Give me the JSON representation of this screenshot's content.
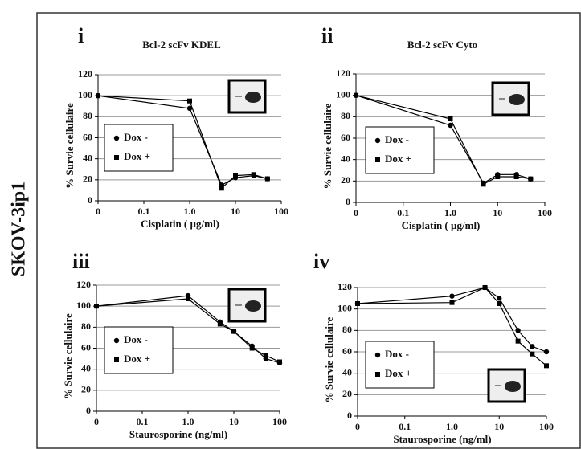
{
  "side_label": "SKOV-3ip1",
  "chart_data": [
    {
      "type": "line",
      "panel": "i",
      "title": "Bcl-2 scFv KDEL",
      "xlabel": "Cisplatin ( µg/ml)",
      "ylabel": "% Survie cellulaire",
      "xscale": "log",
      "xlim": [
        0.01,
        100
      ],
      "xticks": [
        {
          "value": 0.01,
          "label": "0"
        },
        0.1,
        {
          "value": 1,
          "label": "1.0"
        },
        10,
        100
      ],
      "ylim": [
        0,
        120
      ],
      "yticks": [
        0,
        20,
        40,
        60,
        80,
        100,
        120
      ],
      "grid": true,
      "x": [
        0.01,
        1,
        5,
        10,
        25,
        50
      ],
      "series": [
        {
          "name": "Dox -",
          "color": "#000000",
          "marker": "circle",
          "values": [
            100,
            88,
            15,
            22,
            24,
            21
          ]
        },
        {
          "name": "Dox +",
          "color": "#000000",
          "marker": "square",
          "values": [
            100,
            95,
            12,
            24,
            25,
            21
          ]
        }
      ]
    },
    {
      "type": "line",
      "panel": "ii",
      "title": "Bcl-2 scFv Cyto",
      "xlabel": "Cisplatin ( µg/ml)",
      "ylabel": "% Survie cellulaire",
      "xscale": "log",
      "xlim": [
        0.01,
        100
      ],
      "xticks": [
        {
          "value": 0.01,
          "label": "0"
        },
        0.1,
        {
          "value": 1,
          "label": "1.0"
        },
        10,
        100
      ],
      "ylim": [
        0,
        120
      ],
      "yticks": [
        0,
        20,
        40,
        60,
        80,
        100,
        120
      ],
      "grid": true,
      "x": [
        0.01,
        1,
        5,
        10,
        25,
        50
      ],
      "series": [
        {
          "name": "Dox -",
          "color": "#000000",
          "marker": "circle",
          "values": [
            100,
            72,
            18,
            26,
            26,
            22
          ]
        },
        {
          "name": "Dox +",
          "color": "#000000",
          "marker": "square",
          "values": [
            100,
            78,
            17,
            24,
            24,
            22
          ]
        }
      ]
    },
    {
      "type": "line",
      "panel": "iii",
      "xlabel": "Staurosporine (ng/ml)",
      "ylabel": "% Survie cellulaire",
      "xscale": "log",
      "xlim": [
        0.01,
        100
      ],
      "xticks": [
        {
          "value": 0.01,
          "label": "0"
        },
        0.1,
        {
          "value": 1,
          "label": "1.0"
        },
        10,
        100
      ],
      "ylim": [
        0,
        120
      ],
      "yticks": [
        0,
        20,
        40,
        60,
        80,
        100,
        120
      ],
      "grid": true,
      "x": [
        0.01,
        1,
        5,
        10,
        25,
        50,
        100
      ],
      "series": [
        {
          "name": "Dox -",
          "color": "#000000",
          "marker": "circle",
          "values": [
            100,
            110,
            85,
            76,
            62,
            50,
            46
          ]
        },
        {
          "name": "Dox +",
          "color": "#000000",
          "marker": "square",
          "values": [
            100,
            107,
            83,
            76,
            60,
            53,
            47
          ]
        }
      ]
    },
    {
      "type": "line",
      "panel": "iv",
      "xlabel": "Staurosporine (ng/ml)",
      "ylabel": "% Survie cellulaire",
      "xscale": "log",
      "xlim": [
        0.01,
        100
      ],
      "xticks": [
        {
          "value": 0.01,
          "label": "0"
        },
        0.1,
        {
          "value": 1,
          "label": "1.0"
        },
        10,
        100
      ],
      "ylim": [
        0,
        120
      ],
      "yticks": [
        0,
        20,
        40,
        60,
        80,
        100,
        120
      ],
      "grid": true,
      "x": [
        0.01,
        1,
        5,
        10,
        25,
        50,
        100
      ],
      "series": [
        {
          "name": "Dox -",
          "color": "#000000",
          "marker": "circle",
          "values": [
            105,
            112,
            120,
            110,
            80,
            65,
            60
          ]
        },
        {
          "name": "Dox +",
          "color": "#000000",
          "marker": "square",
          "values": [
            105,
            106,
            120,
            105,
            70,
            58,
            47
          ]
        }
      ]
    }
  ]
}
